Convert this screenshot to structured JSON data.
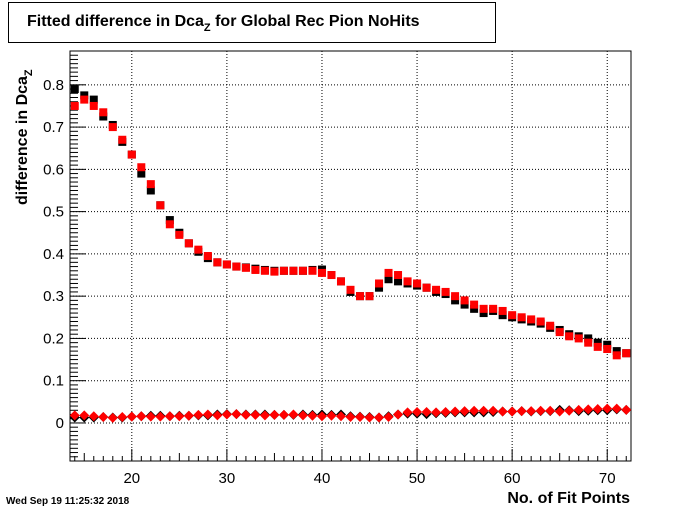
{
  "title": {
    "main": "Fitted difference in Dca",
    "sub": "Z",
    "rest": " for Global Rec Pion NoHits"
  },
  "timestamp": "Wed Sep 19 11:25:32 2018",
  "chart_data": {
    "type": "scatter",
    "title": "Fitted difference in Dca_Z for Global Rec Pion NoHits",
    "xlabel": "No. of Fit Points",
    "ylabel": "difference in Dca_Z",
    "xlim": [
      13.5,
      72.5
    ],
    "ylim": [
      -0.09,
      0.88
    ],
    "grid": true,
    "x_ticks": [
      "20",
      "30",
      "40",
      "50",
      "60",
      "70"
    ],
    "y_ticks": [
      "0",
      "0.1",
      "0.2",
      "0.3",
      "0.4",
      "0.5",
      "0.6",
      "0.7",
      "0.8"
    ],
    "x": [
      14,
      15,
      16,
      17,
      18,
      19,
      20,
      21,
      22,
      23,
      24,
      25,
      26,
      27,
      28,
      29,
      30,
      31,
      32,
      33,
      34,
      35,
      36,
      37,
      38,
      39,
      40,
      41,
      42,
      43,
      44,
      45,
      46,
      47,
      48,
      49,
      50,
      51,
      52,
      53,
      54,
      55,
      56,
      57,
      58,
      59,
      60,
      61,
      62,
      63,
      64,
      65,
      66,
      67,
      68,
      69,
      70,
      71,
      72
    ],
    "series": [
      {
        "color": "#000000",
        "marker": "square",
        "values": [
          0.79,
          0.775,
          0.765,
          0.725,
          0.705,
          0.665,
          0.635,
          0.59,
          0.55,
          0.515,
          0.48,
          0.45,
          0.425,
          0.405,
          0.39,
          0.38,
          0.375,
          0.37,
          0.368,
          0.365,
          0.362,
          0.36,
          0.36,
          0.36,
          0.36,
          0.362,
          0.363,
          0.35,
          0.335,
          0.31,
          0.3,
          0.3,
          0.32,
          0.34,
          0.335,
          0.33,
          0.325,
          0.32,
          0.31,
          0.305,
          0.29,
          0.28,
          0.27,
          0.26,
          0.265,
          0.255,
          0.25,
          0.245,
          0.24,
          0.235,
          0.225,
          0.22,
          0.21,
          0.205,
          0.2,
          0.19,
          0.185,
          0.17,
          0.165
        ]
      },
      {
        "color": "#ff0000",
        "marker": "square",
        "values": [
          0.75,
          0.765,
          0.75,
          0.735,
          0.7,
          0.67,
          0.635,
          0.605,
          0.565,
          0.515,
          0.47,
          0.445,
          0.425,
          0.41,
          0.395,
          0.38,
          0.375,
          0.37,
          0.367,
          0.362,
          0.36,
          0.358,
          0.36,
          0.36,
          0.36,
          0.36,
          0.355,
          0.35,
          0.335,
          0.315,
          0.3,
          0.3,
          0.33,
          0.355,
          0.35,
          0.335,
          0.33,
          0.32,
          0.315,
          0.31,
          0.3,
          0.29,
          0.28,
          0.27,
          0.27,
          0.265,
          0.255,
          0.25,
          0.245,
          0.24,
          0.23,
          0.215,
          0.205,
          0.2,
          0.19,
          0.18,
          0.175,
          0.16,
          0.165
        ]
      },
      {
        "color": "#000000",
        "marker": "diamond",
        "values": [
          0.013,
          0.013,
          0.013,
          0.014,
          0.013,
          0.013,
          0.015,
          0.016,
          0.017,
          0.017,
          0.016,
          0.017,
          0.017,
          0.018,
          0.018,
          0.02,
          0.021,
          0.021,
          0.02,
          0.02,
          0.02,
          0.019,
          0.019,
          0.019,
          0.02,
          0.019,
          0.02,
          0.019,
          0.02,
          0.016,
          0.015,
          0.014,
          0.013,
          0.016,
          0.02,
          0.022,
          0.022,
          0.021,
          0.023,
          0.024,
          0.025,
          0.025,
          0.025,
          0.025,
          0.026,
          0.027,
          0.027,
          0.028,
          0.027,
          0.028,
          0.028,
          0.031,
          0.03,
          0.028,
          0.029,
          0.03,
          0.03,
          0.032,
          0.031
        ]
      },
      {
        "color": "#ff0000",
        "marker": "diamond",
        "values": [
          0.018,
          0.018,
          0.016,
          0.014,
          0.012,
          0.014,
          0.015,
          0.016,
          0.015,
          0.015,
          0.016,
          0.016,
          0.017,
          0.019,
          0.02,
          0.018,
          0.02,
          0.021,
          0.019,
          0.019,
          0.018,
          0.019,
          0.019,
          0.02,
          0.018,
          0.017,
          0.016,
          0.017,
          0.016,
          0.014,
          0.014,
          0.013,
          0.013,
          0.014,
          0.02,
          0.025,
          0.026,
          0.026,
          0.025,
          0.026,
          0.027,
          0.028,
          0.029,
          0.029,
          0.029,
          0.027,
          0.027,
          0.028,
          0.028,
          0.029,
          0.029,
          0.027,
          0.029,
          0.031,
          0.032,
          0.033,
          0.034,
          0.034,
          0.031
        ]
      }
    ]
  }
}
